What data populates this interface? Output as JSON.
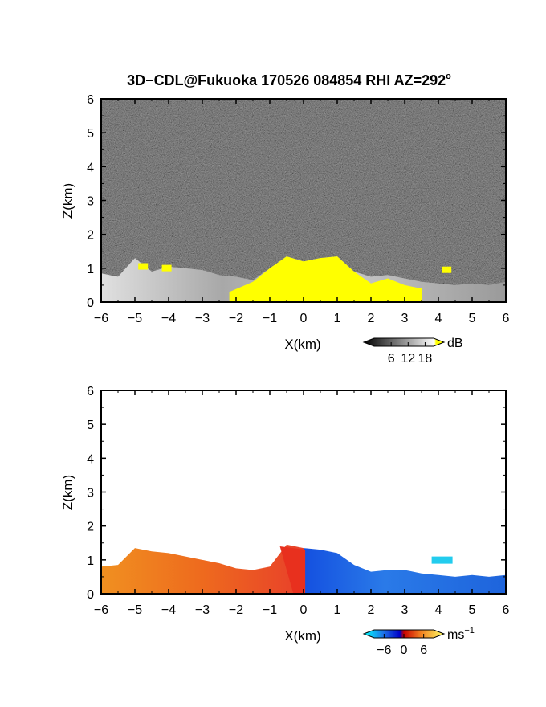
{
  "title": "3D−CDL@Fukuoka 170526 084854 RHI AZ=292",
  "title_degree": "o",
  "colors": {
    "reflectivity_high": "#ffff00",
    "background_noise": "#1e1e1e",
    "velocity_negative": "#1e6fe6",
    "velocity_positive": "#f07a1e"
  },
  "chart_data": [
    {
      "type": "heatmap",
      "name": "reflectivity",
      "xlabel": "X(km)",
      "ylabel": "Z(km)",
      "xlim": [
        -6,
        6
      ],
      "ylim": [
        0,
        6
      ],
      "xticks": [
        "−6",
        "−5",
        "−4",
        "−3",
        "−2",
        "−1",
        "0",
        "1",
        "2",
        "3",
        "4",
        "5",
        "6"
      ],
      "yticks": [
        "0",
        "1",
        "2",
        "3",
        "4",
        "5",
        "6"
      ],
      "colorbar": {
        "ticks": [
          "6",
          "12",
          "18"
        ],
        "unit": "dB",
        "range": [
          0,
          21
        ]
      },
      "echo_top_profile": {
        "x": [
          -6,
          -5.5,
          -5,
          -4.5,
          -4,
          -3.5,
          -3,
          -2.5,
          -2,
          -1.5,
          -1,
          -0.5,
          0,
          0.5,
          1,
          1.5,
          2,
          2.5,
          3,
          3.5,
          4,
          4.5,
          5,
          5.5,
          6
        ],
        "z": [
          0.85,
          0.75,
          1.3,
          0.9,
          1.05,
          1.0,
          0.95,
          0.8,
          0.75,
          0.65,
          1.0,
          1.35,
          1.2,
          1.3,
          1.35,
          0.9,
          0.75,
          0.8,
          0.7,
          0.6,
          0.55,
          0.5,
          0.55,
          0.5,
          0.6
        ]
      },
      "strong_echo_profile": {
        "x": [
          -2.2,
          -1.5,
          -1,
          -0.5,
          0,
          0.5,
          1,
          1.5,
          2,
          2.5,
          3,
          3.5
        ],
        "z": [
          0.3,
          0.6,
          1.0,
          1.35,
          1.2,
          1.3,
          1.35,
          0.9,
          0.55,
          0.7,
          0.5,
          0.4
        ]
      }
    },
    {
      "type": "heatmap",
      "name": "doppler_velocity",
      "xlabel": "X(km)",
      "ylabel": "Z(km)",
      "xlim": [
        -6,
        6
      ],
      "ylim": [
        0,
        6
      ],
      "xticks": [
        "−6",
        "−5",
        "−4",
        "−3",
        "−2",
        "−1",
        "0",
        "1",
        "2",
        "3",
        "4",
        "5",
        "6"
      ],
      "yticks": [
        "0",
        "1",
        "2",
        "3",
        "4",
        "5",
        "6"
      ],
      "colorbar": {
        "ticks": [
          "−6",
          "0",
          "6"
        ],
        "unit": "ms",
        "unit_exp": "−1",
        "range": [
          -9,
          9
        ]
      },
      "echo_top_profile": {
        "x": [
          -6,
          -5.5,
          -5,
          -4.5,
          -4,
          -3.5,
          -3,
          -2.5,
          -2,
          -1.5,
          -1,
          -0.5,
          0,
          0.5,
          1,
          1.5,
          2,
          2.5,
          3,
          3.5,
          4,
          4.5,
          5,
          5.5,
          6
        ],
        "z": [
          0.8,
          0.85,
          1.35,
          1.25,
          1.2,
          1.1,
          1.0,
          0.9,
          0.75,
          0.7,
          0.8,
          1.45,
          1.35,
          1.3,
          1.2,
          0.85,
          0.65,
          0.7,
          0.7,
          0.6,
          0.55,
          0.5,
          0.55,
          0.5,
          0.55
        ]
      },
      "velocity_profile": {
        "x": [
          -6,
          -5,
          -4,
          -3,
          -2,
          -1,
          -0.5,
          0,
          0.5,
          1,
          2,
          3,
          4,
          5,
          6
        ],
        "v": [
          5,
          5.5,
          5,
          4.5,
          4,
          3,
          1.5,
          0,
          -2,
          -4,
          -4.5,
          -4,
          -3.5,
          -3.5,
          -3
        ]
      }
    }
  ]
}
